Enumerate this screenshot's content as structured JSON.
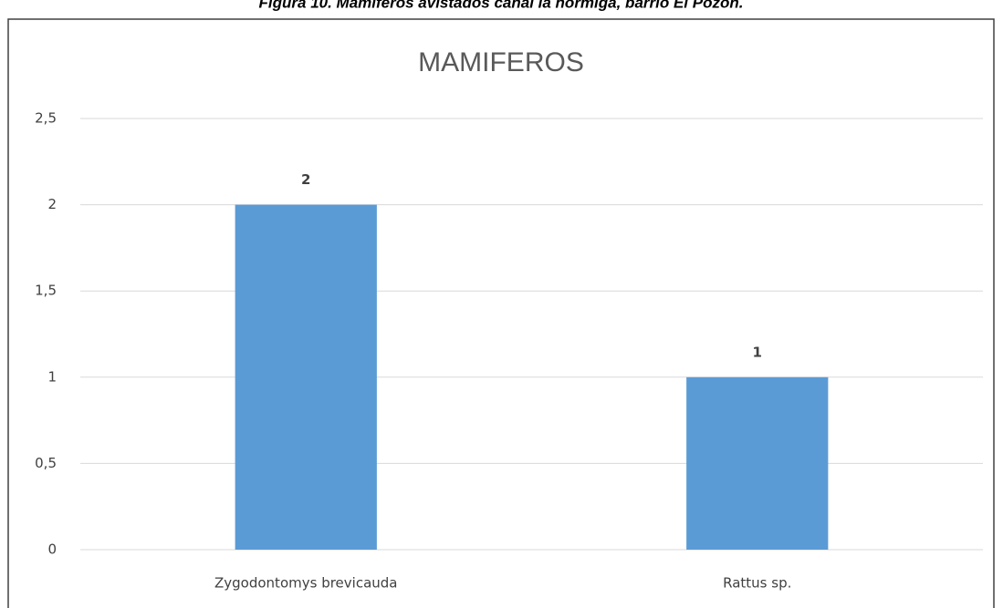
{
  "caption": "Figura 10. Mamíferos avistados canal la hormiga, barrio El Pozón.",
  "chart_data": {
    "type": "bar",
    "title": "MAMIFEROS",
    "categories": [
      "Zygodontomys brevicauda",
      "Rattus sp."
    ],
    "values": [
      2,
      1
    ],
    "color": "#5b9bd5",
    "ylim": [
      0,
      2.5
    ],
    "yticks": [
      0,
      {
        "value": 0.5,
        "label": "0,5"
      },
      1,
      {
        "value": 1.5,
        "label": "1,5"
      },
      2,
      {
        "value": 2.5,
        "label": "2,5"
      }
    ],
    "grid": true
  }
}
